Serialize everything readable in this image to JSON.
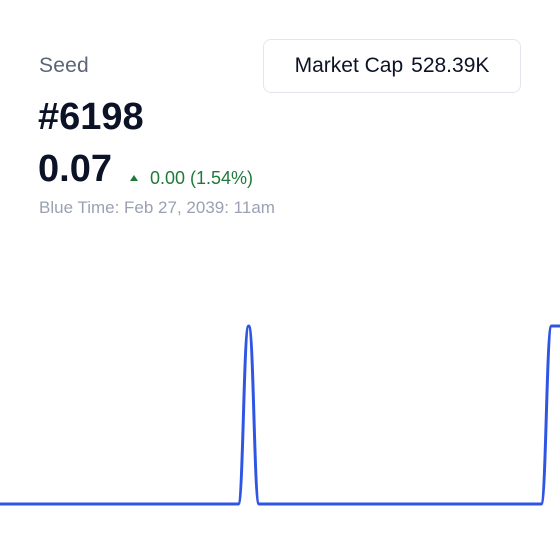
{
  "header": {
    "category": "Seed",
    "token_id": "#6198",
    "price": "0.07",
    "change": "0.00 (1.54%)",
    "timestamp": "Blue Time: Feb 27, 2039: 11am"
  },
  "market_cap": {
    "label": "Market Cap",
    "value": "528.39K"
  },
  "colors": {
    "line": "#2f55e4",
    "positive": "#1f7a3a"
  },
  "chart_data": {
    "type": "line",
    "series": [
      {
        "values": [
          0,
          0,
          0,
          0,
          0,
          0,
          0,
          0,
          0,
          0,
          0,
          0,
          0,
          0,
          0,
          0,
          0,
          0,
          0,
          0,
          0,
          0,
          0,
          0,
          1,
          0,
          0,
          0,
          0,
          0,
          0,
          0,
          0,
          0,
          0,
          0,
          0,
          0,
          0,
          0,
          0,
          0,
          0,
          0,
          0,
          0,
          0,
          0,
          0,
          0,
          0,
          0,
          0,
          1,
          1
        ]
      }
    ],
    "ylim": [
      0,
      1
    ],
    "grid": false,
    "legend": "none"
  }
}
